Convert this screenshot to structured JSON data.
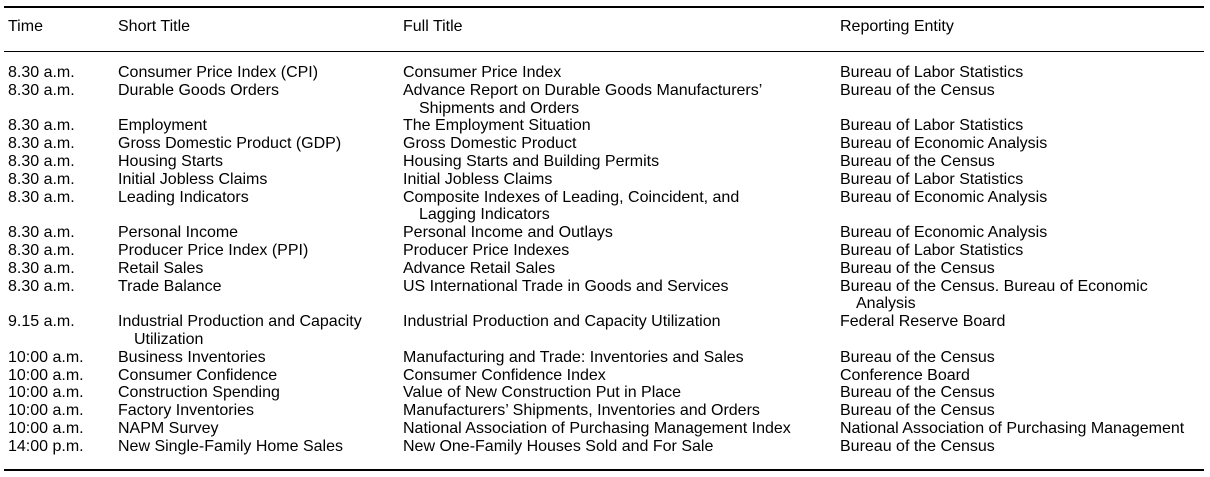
{
  "headers": {
    "time": "Time",
    "short_title": "Short Title",
    "full_title": "Full Title",
    "entity": "Reporting Entity"
  },
  "rows": [
    {
      "time": "8.30 a.m.",
      "short": [
        "Consumer Price Index (CPI)"
      ],
      "full": [
        "Consumer Price Index"
      ],
      "entity": [
        "Bureau of Labor Statistics"
      ]
    },
    {
      "time": "8.30 a.m.",
      "short": [
        "Durable Goods Orders"
      ],
      "full": [
        "Advance Report on Durable Goods Manufacturers’",
        "Shipments and Orders"
      ],
      "entity": [
        "Bureau of the Census"
      ]
    },
    {
      "time": "8.30 a.m.",
      "short": [
        "Employment"
      ],
      "full": [
        "The Employment Situation"
      ],
      "entity": [
        "Bureau of Labor Statistics"
      ]
    },
    {
      "time": "8.30 a.m.",
      "short": [
        "Gross Domestic Product (GDP)"
      ],
      "full": [
        "Gross Domestic Product"
      ],
      "entity": [
        "Bureau of Economic Analysis"
      ]
    },
    {
      "time": "8.30 a.m.",
      "short": [
        "Housing Starts"
      ],
      "full": [
        "Housing Starts and Building Permits"
      ],
      "entity": [
        "Bureau of the Census"
      ]
    },
    {
      "time": "8.30 a.m.",
      "short": [
        "Initial Jobless Claims"
      ],
      "full": [
        "Initial Jobless Claims"
      ],
      "entity": [
        "Bureau of Labor Statistics"
      ]
    },
    {
      "time": "8.30 a.m.",
      "short": [
        "Leading Indicators"
      ],
      "full": [
        "Composite Indexes of Leading, Coincident, and",
        "Lagging Indicators"
      ],
      "entity": [
        "Bureau of Economic Analysis"
      ]
    },
    {
      "time": "8.30 a.m.",
      "short": [
        "Personal Income"
      ],
      "full": [
        "Personal Income and Outlays"
      ],
      "entity": [
        "Bureau of Economic Analysis"
      ]
    },
    {
      "time": "8.30 a.m.",
      "short": [
        "Producer Price Index (PPI)"
      ],
      "full": [
        "Producer Price Indexes"
      ],
      "entity": [
        "Bureau of Labor Statistics"
      ]
    },
    {
      "time": "8.30 a.m.",
      "short": [
        "Retail Sales"
      ],
      "full": [
        "Advance Retail Sales"
      ],
      "entity": [
        "Bureau of the Census"
      ]
    },
    {
      "time": "8.30 a.m.",
      "short": [
        "Trade Balance"
      ],
      "full": [
        "US International Trade in Goods and Services"
      ],
      "entity": [
        "Bureau of the Census. Bureau of Economic",
        "Analysis"
      ]
    },
    {
      "time": "9.15 a.m.",
      "short": [
        "Industrial Production and Capacity",
        "Utilization"
      ],
      "full": [
        "Industrial Production and Capacity Utilization"
      ],
      "entity": [
        "Federal Reserve Board"
      ]
    },
    {
      "time": "10:00 a.m.",
      "short": [
        "Business Inventories"
      ],
      "full": [
        "Manufacturing and Trade: Inventories and Sales"
      ],
      "entity": [
        "Bureau of the Census"
      ]
    },
    {
      "time": "10:00 a.m.",
      "short": [
        "Consumer Confidence"
      ],
      "full": [
        "Consumer Confidence Index"
      ],
      "entity": [
        "Conference Board"
      ]
    },
    {
      "time": "10:00 a.m.",
      "short": [
        "Construction Spending"
      ],
      "full": [
        "Value of New Construction Put in Place"
      ],
      "entity": [
        "Bureau of the Census"
      ]
    },
    {
      "time": "10:00 a.m.",
      "short": [
        "Factory Inventories"
      ],
      "full": [
        "Manufacturers’ Shipments, Inventories and Orders"
      ],
      "entity": [
        "Bureau of the Census"
      ]
    },
    {
      "time": "10:00 a.m.",
      "short": [
        "NAPM Survey"
      ],
      "full": [
        "National Association of Purchasing Management Index"
      ],
      "entity": [
        "National Association of Purchasing Management"
      ]
    },
    {
      "time": "14:00 p.m.",
      "short": [
        "New Single-Family Home Sales"
      ],
      "full": [
        "New One-Family Houses Sold and For Sale"
      ],
      "entity": [
        "Bureau of the Census"
      ]
    }
  ]
}
